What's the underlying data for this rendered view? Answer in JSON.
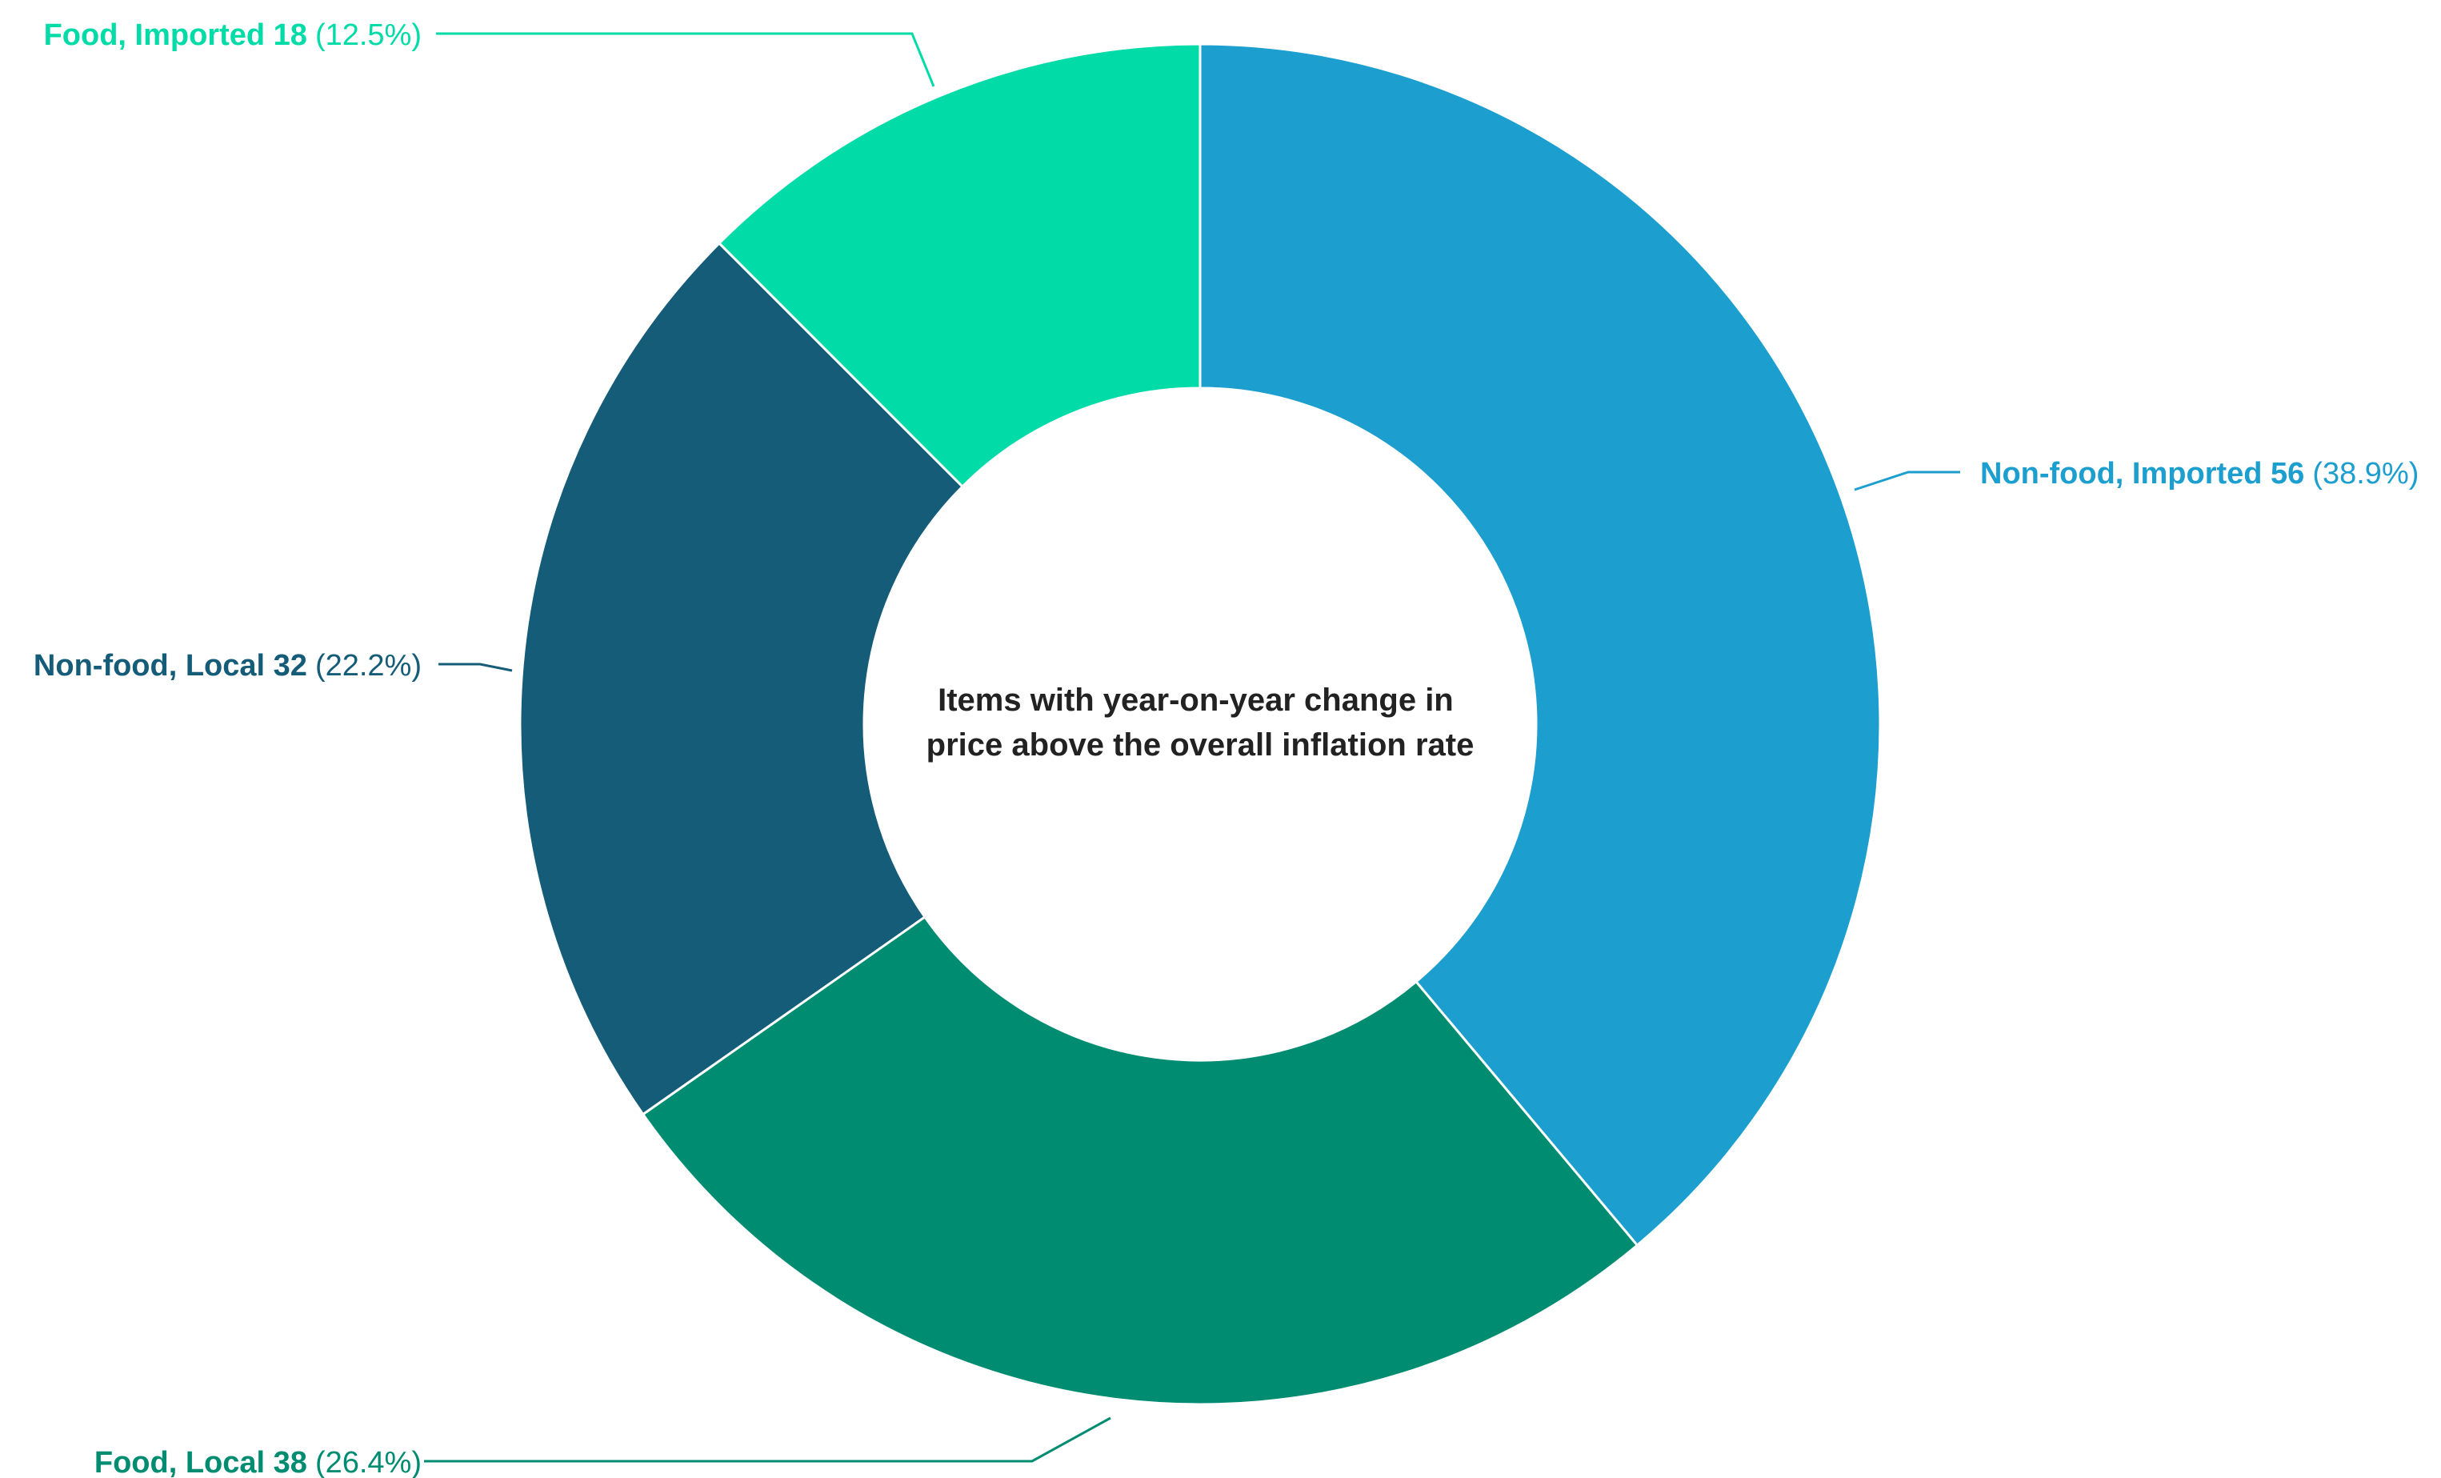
{
  "chart_data": {
    "type": "pie",
    "variant": "donut",
    "center_label": [
      "Items with year-on-year change in",
      "price above the overall inflation rate"
    ],
    "slices": [
      {
        "label": "Non-food, Imported",
        "value": 56,
        "percent_text": "(38.9%)",
        "color": "#1c9fcf"
      },
      {
        "label": "Food, Local",
        "value": 38,
        "percent_text": "(26.4%)",
        "color": "#008c71"
      },
      {
        "label": "Non-food, Local",
        "value": 32,
        "percent_text": "(22.2%)",
        "color": "#155c78"
      },
      {
        "label": "Food, Imported",
        "value": 18,
        "percent_text": "(12.5%)",
        "color": "#00dba7"
      }
    ],
    "legend": "none",
    "start_angle": "12 o'clock",
    "direction": "clockwise"
  }
}
